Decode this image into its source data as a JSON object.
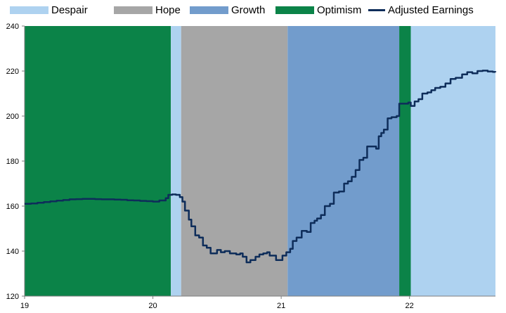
{
  "chart_data": {
    "type": "line",
    "title": "",
    "xlabel": "",
    "ylabel": "",
    "xlim": [
      19,
      22.67
    ],
    "ylim": [
      120,
      240
    ],
    "x_ticks": [
      "19",
      "20",
      "21",
      "22"
    ],
    "y_ticks": [
      "120",
      "140",
      "160",
      "180",
      "200",
      "220",
      "240"
    ],
    "legend_position": "top",
    "phases": [
      {
        "name": "Optimism",
        "start": 19.0,
        "end": 20.14,
        "color": "#0b8348"
      },
      {
        "name": "Despair",
        "start": 20.14,
        "end": 20.22,
        "color": "#aed2f0"
      },
      {
        "name": "Hope",
        "start": 20.22,
        "end": 21.05,
        "color": "#a6a6a6"
      },
      {
        "name": "Growth",
        "start": 21.05,
        "end": 21.92,
        "color": "#729ccc"
      },
      {
        "name": "Optimism",
        "start": 21.92,
        "end": 22.01,
        "color": "#0b8348"
      },
      {
        "name": "Despair",
        "start": 22.01,
        "end": 22.67,
        "color": "#aed2f0"
      }
    ],
    "legend": [
      {
        "label": "Despair",
        "color": "#aed2f0",
        "kind": "area"
      },
      {
        "label": "Hope",
        "color": "#a6a6a6",
        "kind": "area"
      },
      {
        "label": "Growth",
        "color": "#729ccc",
        "kind": "area"
      },
      {
        "label": "Optimism",
        "color": "#0b8348",
        "kind": "area"
      },
      {
        "label": "Adjusted Earnings",
        "color": "#0e2d5a",
        "kind": "line"
      }
    ],
    "series": [
      {
        "name": "Adjusted Earnings",
        "color": "#0e2d5a",
        "points": [
          [
            19.0,
            161.0
          ],
          [
            19.05,
            161.2
          ],
          [
            19.1,
            161.5
          ],
          [
            19.15,
            161.8
          ],
          [
            19.2,
            162.1
          ],
          [
            19.25,
            162.4
          ],
          [
            19.3,
            162.7
          ],
          [
            19.35,
            163.0
          ],
          [
            19.4,
            163.1
          ],
          [
            19.45,
            163.2
          ],
          [
            19.5,
            163.2
          ],
          [
            19.55,
            163.1
          ],
          [
            19.6,
            163.0
          ],
          [
            19.65,
            163.0
          ],
          [
            19.7,
            162.9
          ],
          [
            19.75,
            162.8
          ],
          [
            19.8,
            162.6
          ],
          [
            19.85,
            162.5
          ],
          [
            19.9,
            162.3
          ],
          [
            19.95,
            162.2
          ],
          [
            20.0,
            162.0
          ],
          [
            20.05,
            162.5
          ],
          [
            20.1,
            163.5
          ],
          [
            20.12,
            165.0
          ],
          [
            20.15,
            165.2
          ],
          [
            20.18,
            165.0
          ],
          [
            20.21,
            164.0
          ],
          [
            20.23,
            162.0
          ],
          [
            20.25,
            158.0
          ],
          [
            20.28,
            154.0
          ],
          [
            20.3,
            151.0
          ],
          [
            20.33,
            147.0
          ],
          [
            20.36,
            146.0
          ],
          [
            20.39,
            142.5
          ],
          [
            20.42,
            141.5
          ],
          [
            20.45,
            139.0
          ],
          [
            20.48,
            139.0
          ],
          [
            20.5,
            140.5
          ],
          [
            20.53,
            139.5
          ],
          [
            20.56,
            140.0
          ],
          [
            20.6,
            139.0
          ],
          [
            20.65,
            138.5
          ],
          [
            20.68,
            139.0
          ],
          [
            20.7,
            137.5
          ],
          [
            20.73,
            135.0
          ],
          [
            20.76,
            136.0
          ],
          [
            20.8,
            137.5
          ],
          [
            20.83,
            138.5
          ],
          [
            20.86,
            139.0
          ],
          [
            20.89,
            139.5
          ],
          [
            20.91,
            138.0
          ],
          [
            20.94,
            138.0
          ],
          [
            20.96,
            136.0
          ],
          [
            20.99,
            136.0
          ],
          [
            21.01,
            138.0
          ],
          [
            21.04,
            139.5
          ],
          [
            21.07,
            141.0
          ],
          [
            21.09,
            144.5
          ],
          [
            21.12,
            146.0
          ],
          [
            21.16,
            149.0
          ],
          [
            21.2,
            148.5
          ],
          [
            21.23,
            152.5
          ],
          [
            21.26,
            153.5
          ],
          [
            21.28,
            154.5
          ],
          [
            21.31,
            156.0
          ],
          [
            21.34,
            160.0
          ],
          [
            21.38,
            161.0
          ],
          [
            21.41,
            166.0
          ],
          [
            21.45,
            166.5
          ],
          [
            21.49,
            170.0
          ],
          [
            21.52,
            171.0
          ],
          [
            21.55,
            173.0
          ],
          [
            21.58,
            176.0
          ],
          [
            21.61,
            180.5
          ],
          [
            21.64,
            181.5
          ],
          [
            21.67,
            186.5
          ],
          [
            21.71,
            186.5
          ],
          [
            21.74,
            185.5
          ],
          [
            21.76,
            191.0
          ],
          [
            21.78,
            192.5
          ],
          [
            21.8,
            194.0
          ],
          [
            21.83,
            199.0
          ],
          [
            21.86,
            199.5
          ],
          [
            21.9,
            200.0
          ],
          [
            21.92,
            205.5
          ],
          [
            21.95,
            205.5
          ],
          [
            21.99,
            206.0
          ],
          [
            22.01,
            204.5
          ],
          [
            22.04,
            206.5
          ],
          [
            22.07,
            207.5
          ],
          [
            22.1,
            210.0
          ],
          [
            22.14,
            210.5
          ],
          [
            22.17,
            211.5
          ],
          [
            22.2,
            212.5
          ],
          [
            22.24,
            213.0
          ],
          [
            22.28,
            214.5
          ],
          [
            22.32,
            216.5
          ],
          [
            22.36,
            217.0
          ],
          [
            22.41,
            218.5
          ],
          [
            22.45,
            219.5
          ],
          [
            22.49,
            219.0
          ],
          [
            22.53,
            220.0
          ],
          [
            22.57,
            220.2
          ],
          [
            22.61,
            219.8
          ],
          [
            22.65,
            219.6
          ],
          [
            22.67,
            219.5
          ]
        ]
      }
    ]
  }
}
